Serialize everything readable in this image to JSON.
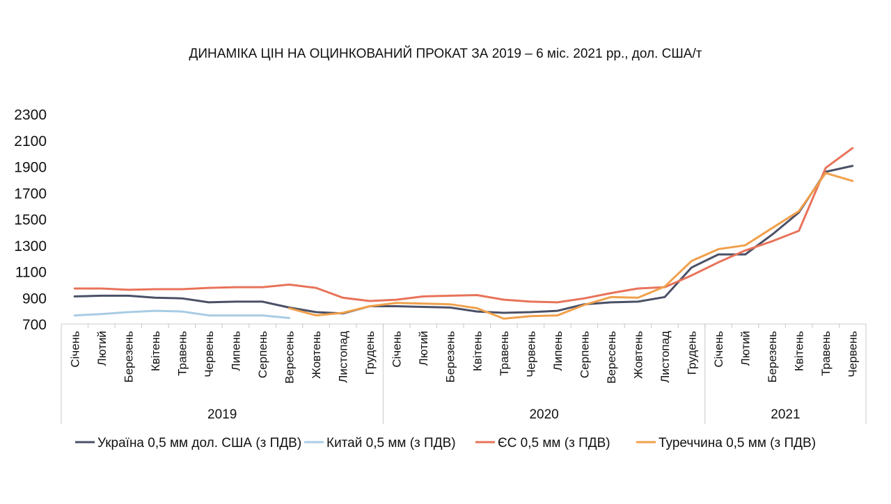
{
  "chart_data": {
    "type": "line",
    "title": "ДИНАМІКА ЦІН НА ОЦИНКОВАНИЙ ПРОКАТ ЗА 2019 – 6 міс. 2021 рр., дол. США/т",
    "ylim": [
      700,
      2300
    ],
    "yticks": [
      700,
      900,
      1100,
      1300,
      1500,
      1700,
      1900,
      2100,
      2300
    ],
    "grid": false,
    "legend_position": "bottom",
    "categories": [
      "Січень",
      "Лютий",
      "Березень",
      "Квітень",
      "Травень",
      "Червень",
      "Липень",
      "Серпень",
      "Вересень",
      "Жовтень",
      "Листопад",
      "Грудень",
      "Січень",
      "Лютий",
      "Березень",
      "Квітень",
      "Травень",
      "Червень",
      "Липень",
      "Серпень",
      "Вересень",
      "Жовтень",
      "Листопад",
      "Грудень",
      "Січень",
      "Лютий",
      "Березень",
      "Квітень",
      "Травень",
      "Червень"
    ],
    "groups": [
      {
        "label": "2019",
        "count": 12
      },
      {
        "label": "2020",
        "count": 12
      },
      {
        "label": "2021",
        "count": 6
      }
    ],
    "series": [
      {
        "name": "Україна 0,5 мм дол. США (з ПДВ)",
        "color": "#4a5066",
        "values": [
          910,
          915,
          915,
          900,
          895,
          865,
          870,
          870,
          825,
          790,
          780,
          835,
          835,
          830,
          825,
          795,
          785,
          790,
          800,
          850,
          865,
          870,
          905,
          1130,
          1230,
          1230,
          1380,
          1550,
          1860,
          1905
        ]
      },
      {
        "name": "Китай  0,5 мм (з ПДВ)",
        "color": "#a8cce4",
        "values": [
          765,
          775,
          790,
          800,
          795,
          765,
          765,
          765,
          745,
          null,
          null,
          null,
          null,
          null,
          null,
          null,
          null,
          null,
          null,
          null,
          null,
          null,
          null,
          null,
          null,
          null,
          null,
          null,
          null,
          null
        ]
      },
      {
        "name": "ЄС 0,5 мм (з ПДВ)",
        "color": "#e8735a",
        "values": [
          970,
          970,
          960,
          965,
          965,
          975,
          980,
          980,
          1000,
          975,
          900,
          875,
          885,
          910,
          915,
          920,
          885,
          870,
          865,
          895,
          935,
          970,
          980,
          1070,
          1170,
          1260,
          1330,
          1410,
          1890,
          2040
        ]
      },
      {
        "name": "Туреччина 0,5 мм (з ПДВ)",
        "color": "#f0a04b",
        "values": [
          null,
          null,
          null,
          null,
          null,
          null,
          null,
          null,
          820,
          765,
          785,
          835,
          860,
          855,
          850,
          820,
          740,
          760,
          765,
          845,
          905,
          900,
          985,
          1180,
          1270,
          1300,
          1430,
          1560,
          1850,
          1790
        ]
      }
    ]
  }
}
